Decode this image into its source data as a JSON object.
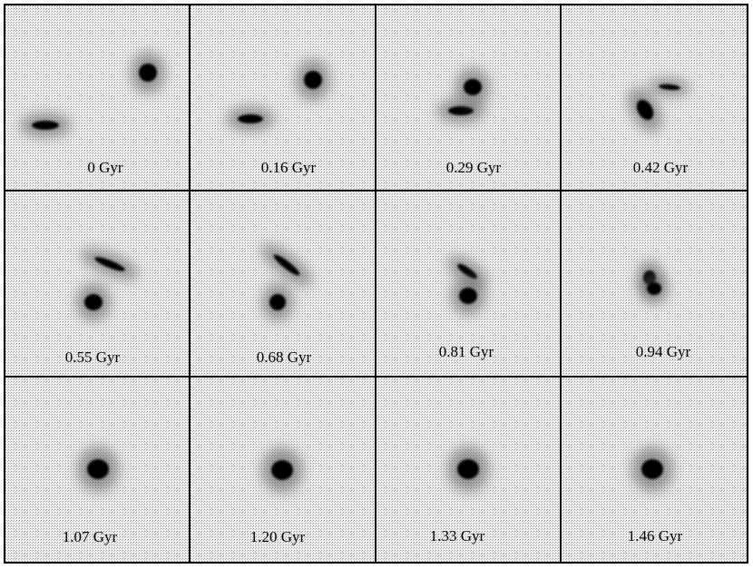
{
  "panels": [
    {
      "label": "0 Gyr"
    },
    {
      "label": "0.16 Gyr"
    },
    {
      "label": "0.29 Gyr"
    },
    {
      "label": "0.42 Gyr"
    },
    {
      "label": "0.55 Gyr"
    },
    {
      "label": "0.68 Gyr"
    },
    {
      "label": "0.81 Gyr"
    },
    {
      "label": "0.94 Gyr"
    },
    {
      "label": "1.07 Gyr"
    },
    {
      "label": "1.20 Gyr"
    },
    {
      "label": "1.33 Gyr"
    },
    {
      "label": "1.46 Gyr"
    }
  ]
}
